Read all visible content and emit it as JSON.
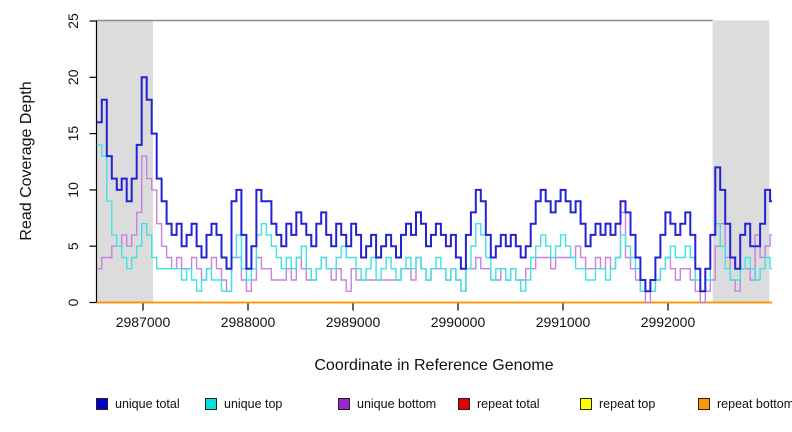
{
  "chart_data": {
    "type": "line",
    "subtype": "step",
    "title": "",
    "xlabel": "Coordinate in Reference Genome",
    "ylabel": "Read Coverage Depth",
    "xlim": [
      2986560,
      2992965
    ],
    "ylim": [
      0,
      25
    ],
    "x_ticks": [
      2987000,
      2988000,
      2989000,
      2990000,
      2991000,
      2992000
    ],
    "y_ticks": [
      0,
      5,
      10,
      15,
      20,
      25
    ],
    "grid": false,
    "legend_position": "bottom-horizontal",
    "shaded_regions": [
      {
        "start": 2986560,
        "end": 2987095,
        "color": "#DCDCDC"
      },
      {
        "start": 2992425,
        "end": 2992965,
        "color": "#DCDCDC"
      }
    ],
    "top_border_color": "#8C8C8C",
    "x_start": 2986560,
    "x_step": 47.5,
    "series": [
      {
        "name": "unique total",
        "color": "#0000CC",
        "line_color": "#2323D3",
        "line_width": 2,
        "values": [
          16,
          18,
          13,
          11,
          10,
          11,
          9,
          11,
          14,
          20,
          18,
          15,
          11,
          9,
          7,
          6,
          7,
          5,
          6,
          7,
          5,
          4,
          6,
          7,
          6,
          4,
          3,
          9,
          10,
          6,
          3,
          5,
          10,
          9,
          9,
          7,
          6,
          5,
          7,
          6,
          8,
          7,
          6,
          5,
          7,
          8,
          6,
          5,
          7,
          6,
          5,
          7,
          6,
          4,
          5,
          6,
          4,
          5,
          6,
          5,
          4,
          6,
          7,
          6,
          8,
          7,
          5,
          6,
          7,
          6,
          5,
          6,
          4,
          3,
          6,
          8,
          10,
          9,
          6,
          4,
          5,
          6,
          5,
          6,
          5,
          4,
          5,
          7,
          9,
          10,
          9,
          8,
          9,
          10,
          9,
          8,
          9,
          7,
          5,
          6,
          7,
          6,
          7,
          6,
          7,
          9,
          8,
          6,
          4,
          2,
          1,
          2,
          4,
          6,
          8,
          7,
          6,
          7,
          8,
          6,
          3,
          1,
          3,
          6,
          12,
          10,
          7,
          4,
          3,
          6,
          7,
          5,
          5,
          7,
          10,
          9
        ]
      },
      {
        "name": "unique top",
        "color": "#00E0E0",
        "line_color": "#3FE3E3",
        "line_width": 1.4,
        "values": [
          14,
          13,
          9,
          6,
          5,
          4,
          3,
          4,
          5,
          7,
          6,
          4,
          3,
          3,
          3,
          3,
          3,
          2,
          3,
          2,
          1,
          2,
          3,
          2,
          2,
          1,
          1,
          4,
          6,
          3,
          2,
          3,
          6,
          7,
          6,
          5,
          4,
          3,
          4,
          3,
          4,
          5,
          3,
          2,
          3,
          4,
          3,
          3,
          4,
          5,
          4,
          4,
          3,
          2,
          3,
          4,
          2,
          3,
          4,
          3,
          2,
          3,
          4,
          3,
          4,
          3,
          2,
          3,
          4,
          3,
          2,
          3,
          2,
          1,
          3,
          5,
          7,
          6,
          4,
          2,
          3,
          3,
          2,
          3,
          2,
          1,
          2,
          4,
          5,
          6,
          5,
          4,
          5,
          6,
          5,
          4,
          3,
          3,
          2,
          2,
          3,
          3,
          2,
          3,
          4,
          6,
          5,
          4,
          3,
          1,
          1,
          1,
          2,
          3,
          4,
          5,
          4,
          4,
          5,
          4,
          2,
          1,
          2,
          6,
          7,
          5,
          3,
          2,
          2,
          3,
          4,
          3,
          2,
          3,
          4,
          3
        ]
      },
      {
        "name": "unique bottom",
        "color": "#9B26CE",
        "line_color": "#C583DB",
        "line_width": 1.4,
        "values": [
          3,
          4,
          4,
          5,
          5,
          6,
          5,
          6,
          8,
          13,
          11,
          10,
          7,
          5,
          4,
          3,
          4,
          3,
          3,
          4,
          3,
          2,
          3,
          4,
          3,
          2,
          1,
          4,
          4,
          2,
          1,
          2,
          4,
          3,
          3,
          2,
          2,
          2,
          3,
          2,
          4,
          3,
          2,
          2,
          3,
          4,
          3,
          2,
          3,
          2,
          1,
          3,
          2,
          2,
          2,
          2,
          2,
          2,
          2,
          2,
          2,
          3,
          3,
          2,
          4,
          3,
          2,
          3,
          3,
          3,
          2,
          3,
          2,
          1,
          3,
          3,
          4,
          3,
          3,
          2,
          2,
          3,
          2,
          3,
          2,
          2,
          3,
          3,
          4,
          4,
          4,
          3,
          4,
          4,
          4,
          4,
          5,
          4,
          3,
          3,
          4,
          3,
          4,
          3,
          4,
          8,
          4,
          3,
          2,
          1,
          0,
          1,
          2,
          3,
          4,
          3,
          2,
          3,
          3,
          2,
          1,
          0,
          1,
          2,
          5,
          7,
          4,
          2,
          1,
          3,
          3,
          2,
          6,
          4,
          5,
          6
        ]
      },
      {
        "name": "repeat total",
        "color": "#E80000",
        "line_color": "#E80000",
        "line_width": 1.4,
        "values_constant": 0
      },
      {
        "name": "repeat top",
        "color": "#FFFF00",
        "line_color": "#FFFF00",
        "line_width": 1.4,
        "values_constant": 0
      },
      {
        "name": "repeat bottom",
        "color": "#FF9800",
        "line_color": "#FF9800",
        "line_width": 1.6,
        "values_constant": 0
      }
    ]
  }
}
